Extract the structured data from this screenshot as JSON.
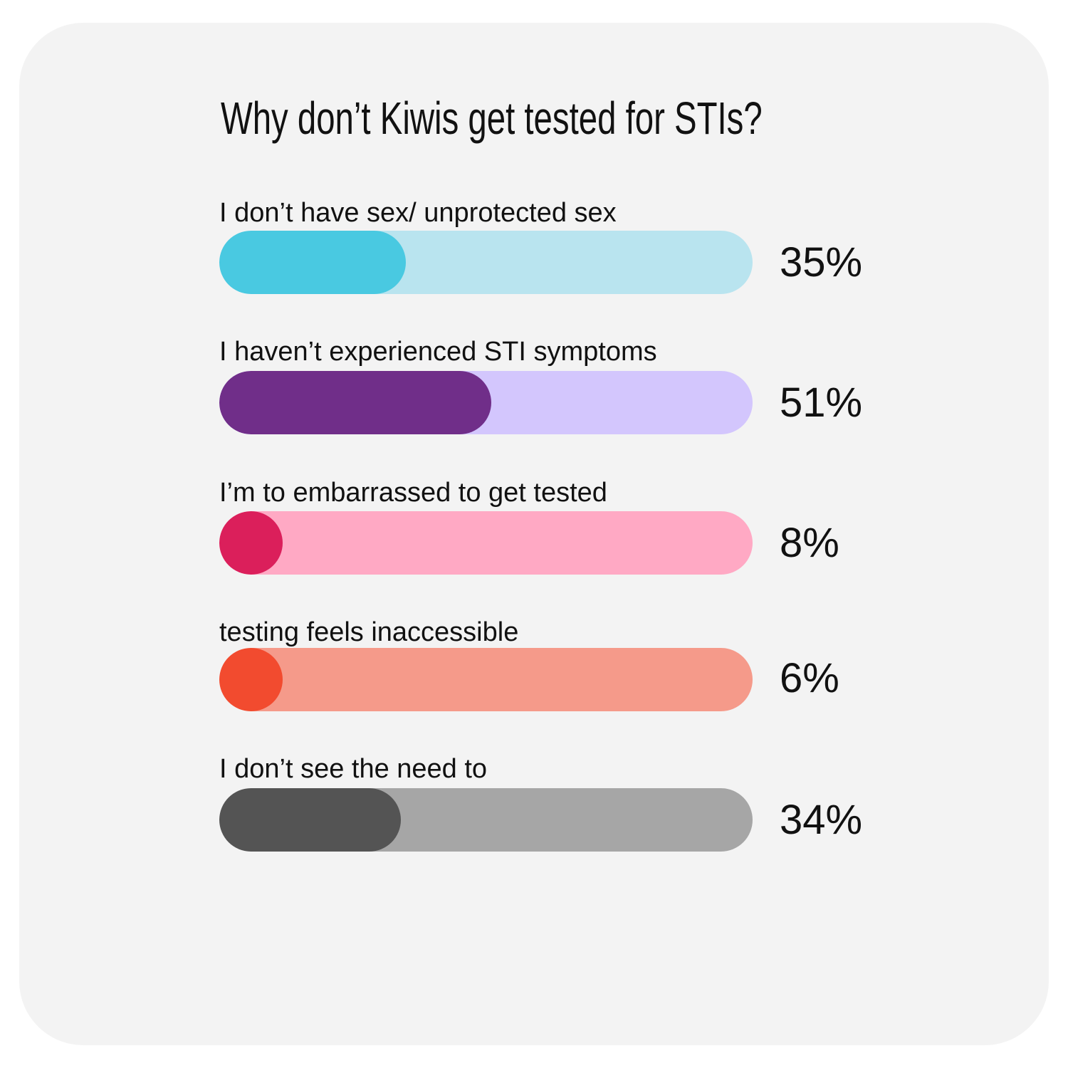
{
  "chart_data": {
    "type": "bar",
    "orientation": "horizontal",
    "title": "Why don’t Kiwis get tested for STIs?",
    "xlim": [
      0,
      100
    ],
    "grid": false,
    "categories": [
      "I don’t have sex/ unprotected sex",
      "I haven’t experienced STI symptoms",
      "I’m to embarrassed to get tested",
      "testing feels inaccessible",
      "I don’t see the need to"
    ],
    "values": [
      35,
      51,
      8,
      6,
      34
    ],
    "value_labels": [
      "35%",
      "51%",
      "8%",
      "6%",
      "34%"
    ],
    "colors": [
      {
        "fill": "#49c9e1",
        "track": "#b9e4ef"
      },
      {
        "fill": "#702e89",
        "track": "#d3c6fd"
      },
      {
        "fill": "#db1f5b",
        "track": "#ffa9c4"
      },
      {
        "fill": "#f24b2f",
        "track": "#f59a8a"
      },
      {
        "fill": "#545454",
        "track": "#a6a6a6"
      }
    ]
  }
}
